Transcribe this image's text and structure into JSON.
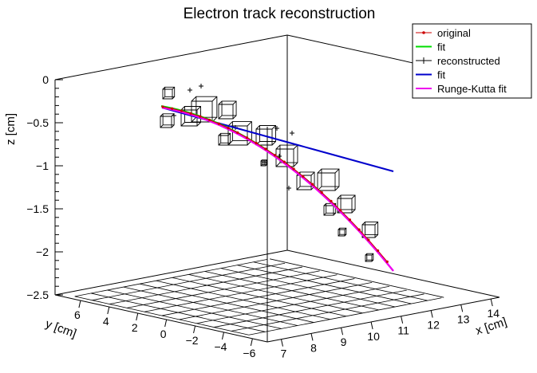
{
  "chart_data": {
    "type": "scatter3d",
    "title": "Electron track reconstruction",
    "xlabel": "x [cm]",
    "ylabel": "y [cm]",
    "zlabel": "z [cm]",
    "x_ticks": [
      "7",
      "8",
      "9",
      "10",
      "11",
      "12",
      "13",
      "14"
    ],
    "y_ticks": [
      "6",
      "4",
      "2",
      "0",
      "−2",
      "−4",
      "−6"
    ],
    "z_ticks": [
      "0",
      "−0.5",
      "−1",
      "−1.5",
      "−2",
      "−2.5"
    ],
    "zlim": [
      -2.5,
      0
    ],
    "legend_position": "top-right",
    "legend": [
      {
        "name": "original",
        "color": "#cc0000",
        "style": "line-point"
      },
      {
        "name": "fit",
        "color": "#00dd00",
        "style": "line"
      },
      {
        "name": "reconstructed",
        "color": "#000000",
        "style": "cross"
      },
      {
        "name": "fit",
        "color": "#0000cc",
        "style": "line"
      },
      {
        "name": "Runge-Kutta fit",
        "color": "#ee00ee",
        "style": "line"
      }
    ]
  }
}
